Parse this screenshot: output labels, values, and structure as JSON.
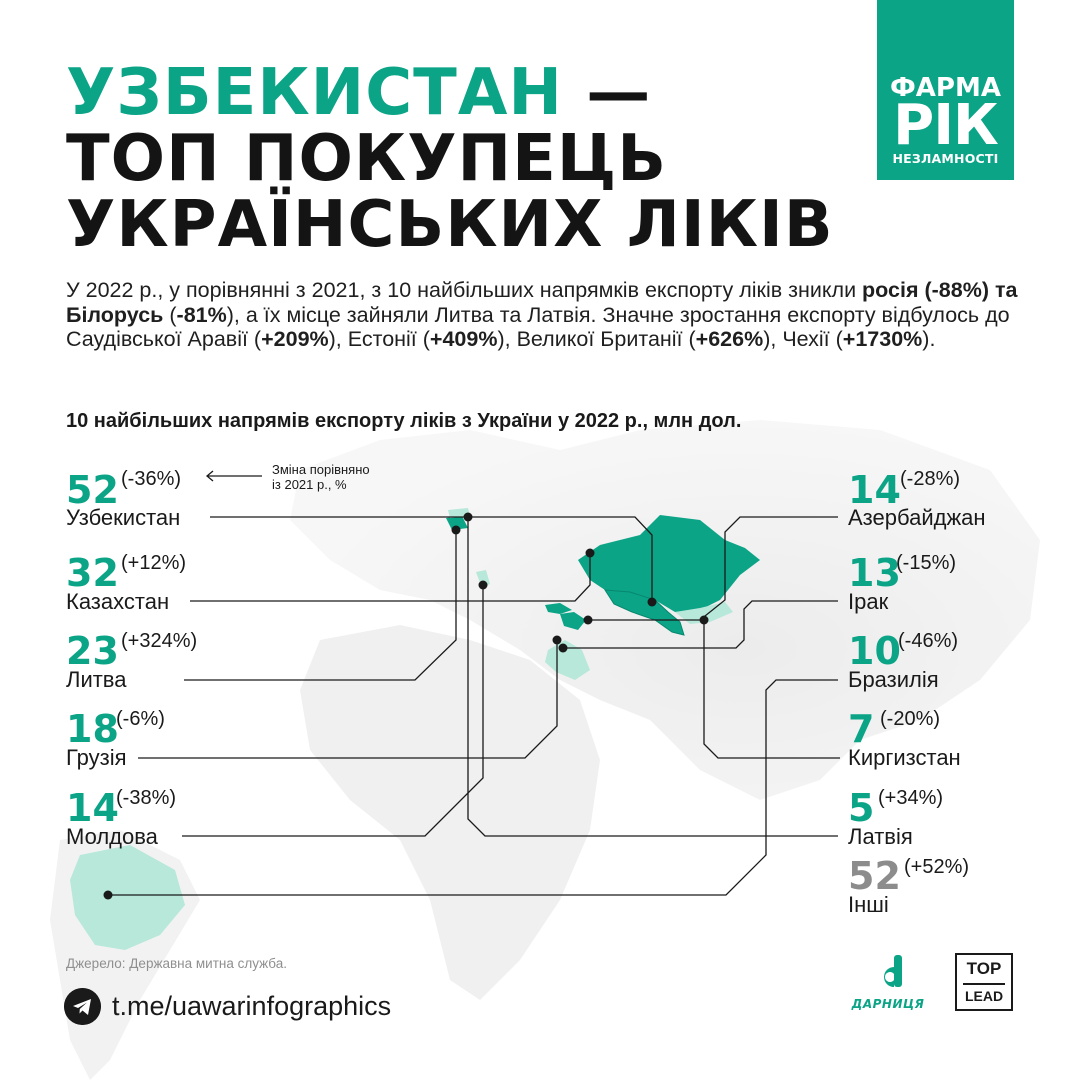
{
  "title": {
    "line1_highlight": "УЗБЕКИСТАН",
    "line1_rest": " —",
    "line2": "ТОП ПОКУПЕЦЬ",
    "line3": "УКРАЇНСЬКИХ ЛІКІВ"
  },
  "logo": {
    "line1": "ФАРМА",
    "line2": "РІК",
    "line3": "НЕЗЛАМНОСТІ"
  },
  "intro": [
    {
      "t": "У 2022 р., у порівнянні з 2021, з 10 найбільших напрямків експорту ліків зникли ",
      "b": false
    },
    {
      "t": "росія (-88%)",
      "b": true
    },
    {
      "t": " ",
      "b": false
    },
    {
      "t": "та Білорусь",
      "b": true
    },
    {
      "t": " (",
      "b": false
    },
    {
      "t": "-81%",
      "b": true
    },
    {
      "t": "), а їх місце зайняли Литва та Латвія. Значне зростання експорту відбулось до Саудівської Аравії (",
      "b": false
    },
    {
      "t": "+209%",
      "b": true
    },
    {
      "t": "), Естонії (",
      "b": false
    },
    {
      "t": "+409%",
      "b": true
    },
    {
      "t": "), Великої Британії (",
      "b": false
    },
    {
      "t": "+626%",
      "b": true
    },
    {
      "t": "), Чехії (",
      "b": false
    },
    {
      "t": "+1730%",
      "b": true
    },
    {
      "t": ").",
      "b": false
    }
  ],
  "subtitle": "10 найбільших напрямів експорту ліків з України у 2022 р., млн дол.",
  "legend_note": {
    "line1": "Зміна порівняно",
    "line2": "із 2021 р., %"
  },
  "countries_left": [
    {
      "value": "52",
      "change": "(-36%)",
      "name": "Узбекистан"
    },
    {
      "value": "32",
      "change": "(+12%)",
      "name": "Казахстан"
    },
    {
      "value": "23",
      "change": "(+324%)",
      "name": "Литва"
    },
    {
      "value": "18",
      "change": "(-6%)",
      "name": "Грузія"
    },
    {
      "value": "14",
      "change": "(-38%)",
      "name": "Молдова"
    }
  ],
  "countries_right": [
    {
      "value": "14",
      "change": "(-28%)",
      "name": "Азербайджан"
    },
    {
      "value": "13",
      "change": "(-15%)",
      "name": "Ірак"
    },
    {
      "value": "10",
      "change": "(-46%)",
      "name": "Бразилія"
    },
    {
      "value": "7",
      "change": "(-20%)",
      "name": "Киргизстан"
    },
    {
      "value": "5",
      "change": "(+34%)",
      "name": "Латвія"
    }
  ],
  "others": {
    "value": "52",
    "change": "(+52%)",
    "name": "Інші"
  },
  "source": "Джерело: Державна митна служба.",
  "telegram_link": "t.me/uawarinfographics",
  "darnytsia_logo": "ДАРНИЦЯ",
  "toplead": {
    "line1": "TOP",
    "line2": "LEAD"
  },
  "colors": {
    "accent": "#0ba487",
    "light_accent": "#9fe0cf",
    "others_grey": "#8c8c8c",
    "text": "#1a1a1a"
  }
}
